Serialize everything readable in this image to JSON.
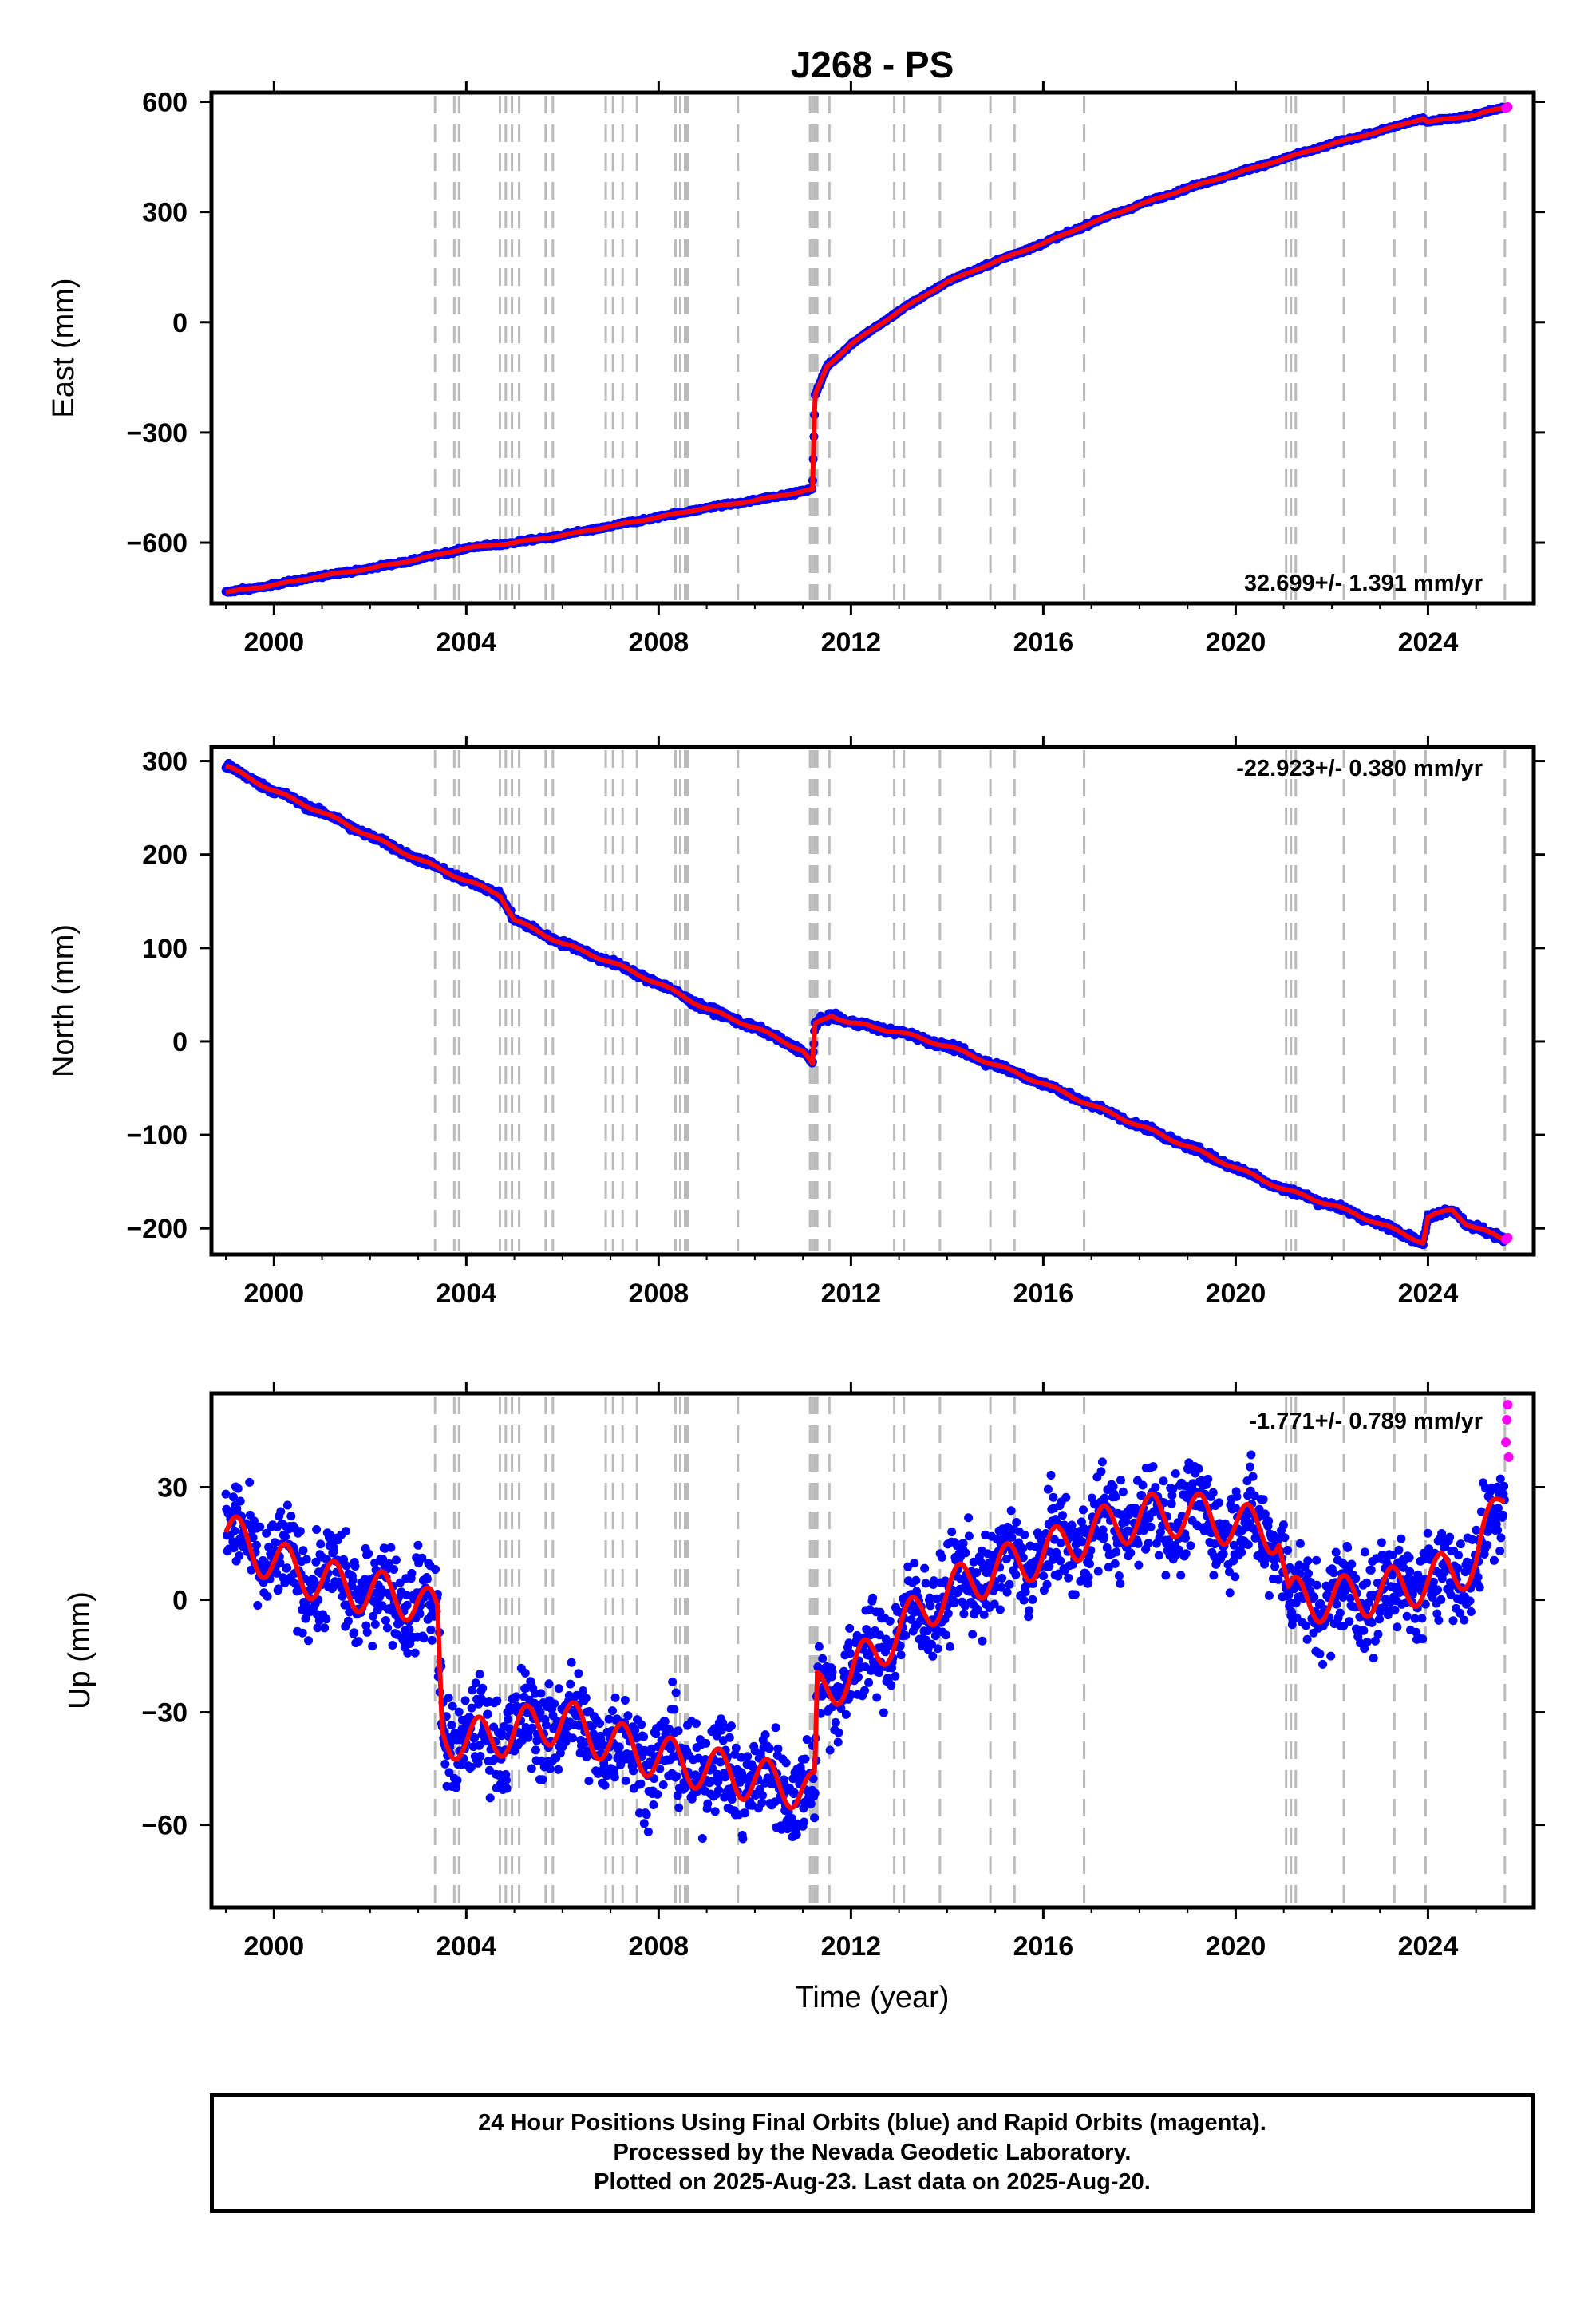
{
  "title": "J268 - PS",
  "xlabel": "Time (year)",
  "footer": {
    "line1": "24 Hour Positions Using Final Orbits (blue) and Rapid Orbits (magenta).",
    "line2": "Processed by the Nevada Geodetic Laboratory.",
    "line3": "Plotted on 2025-Aug-23. Last data on 2025-Aug-20."
  },
  "colors": {
    "final": "#0000ff",
    "rapid": "#ff00ff",
    "model": "#ff0000",
    "event_line": "#bbbbbb"
  },
  "chart_data": [
    {
      "type": "scatter",
      "ylabel": "East (mm)",
      "rate_text": "32.699+/- 1.391 mm/yr",
      "xlim": [
        1998.7,
        2026.2
      ],
      "ylim": [
        -765,
        625
      ],
      "xticks": [
        2000,
        2004,
        2008,
        2012,
        2016,
        2020,
        2024
      ],
      "yticks": [
        600,
        300,
        0,
        -300,
        -600
      ],
      "ytick_labels": [
        "600",
        "300",
        "0",
        "−300",
        "−600"
      ],
      "series": [
        {
          "name": "final",
          "x": [
            1999.0,
            2000.0,
            2001.0,
            2002.0,
            2003.0,
            2004.0,
            2005.0,
            2006.0,
            2007.0,
            2008.0,
            2009.0,
            2010.0,
            2011.0,
            2011.2,
            2011.25,
            2011.5,
            2012.0,
            2013.0,
            2014.0,
            2015.0,
            2016.0,
            2017.0,
            2018.0,
            2019.0,
            2020.0,
            2021.0,
            2022.0,
            2023.0,
            2023.9,
            2024.0,
            2025.0,
            2025.6
          ],
          "y": [
            -735,
            -715,
            -690,
            -670,
            -645,
            -615,
            -600,
            -580,
            -555,
            -530,
            -505,
            -485,
            -460,
            -455,
            -200,
            -120,
            -60,
            30,
            110,
            165,
            215,
            270,
            320,
            365,
            405,
            445,
            485,
            520,
            555,
            545,
            565,
            585
          ]
        },
        {
          "name": "rapid",
          "x": [
            2025.62,
            2025.66
          ],
          "y": [
            583,
            586
          ]
        }
      ]
    },
    {
      "type": "scatter",
      "ylabel": "North (mm)",
      "rate_text": "-22.923+/- 0.380 mm/yr",
      "xlim": [
        1998.7,
        2026.2
      ],
      "ylim": [
        -228,
        315
      ],
      "xticks": [
        2000,
        2004,
        2008,
        2012,
        2016,
        2020,
        2024
      ],
      "yticks": [
        300,
        200,
        100,
        0,
        -100,
        -200
      ],
      "ytick_labels": [
        "300",
        "200",
        "100",
        "0",
        "−100",
        "−200"
      ],
      "series": [
        {
          "name": "final",
          "x": [
            1999.0,
            2000.0,
            2001.0,
            2002.0,
            2003.0,
            2004.0,
            2004.7,
            2005.0,
            2006.0,
            2007.0,
            2008.0,
            2009.0,
            2010.0,
            2011.0,
            2011.2,
            2011.25,
            2011.6,
            2012.0,
            2013.0,
            2014.0,
            2015.0,
            2016.0,
            2017.0,
            2018.0,
            2019.0,
            2020.0,
            2021.0,
            2022.0,
            2023.0,
            2023.9,
            2024.0,
            2024.5,
            2024.8,
            2025.6
          ],
          "y": [
            295,
            268,
            245,
            220,
            195,
            172,
            157,
            130,
            105,
            85,
            62,
            35,
            15,
            -10,
            -25,
            18,
            28,
            20,
            10,
            -5,
            -25,
            -45,
            -68,
            -90,
            -112,
            -135,
            -158,
            -175,
            -195,
            -215,
            -188,
            -180,
            -195,
            -212
          ]
        },
        {
          "name": "rapid",
          "x": [
            2025.62,
            2025.66
          ],
          "y": [
            -212,
            -210
          ]
        }
      ]
    },
    {
      "type": "scatter",
      "ylabel": "Up (mm)",
      "rate_text": "-1.771+/- 0.789 mm/yr",
      "xlim": [
        1998.7,
        2026.2
      ],
      "ylim": [
        -82,
        55
      ],
      "xticks": [
        2000,
        2004,
        2008,
        2012,
        2016,
        2020,
        2024
      ],
      "yticks": [
        30,
        0,
        -30,
        -60
      ],
      "ytick_labels": [
        "30",
        "0",
        "−30",
        "−60"
      ],
      "series": [
        {
          "name": "final",
          "x": [
            1999.0,
            2000.0,
            2001.0,
            2002.0,
            2003.0,
            2003.4,
            2003.5,
            2004.0,
            2005.0,
            2006.0,
            2007.0,
            2008.0,
            2009.0,
            2010.0,
            2011.0,
            2011.25,
            2011.3,
            2012.0,
            2013.0,
            2014.0,
            2015.0,
            2016.0,
            2017.0,
            2018.0,
            2019.0,
            2020.0,
            2020.9,
            2021.1,
            2022.0,
            2023.0,
            2024.0,
            2025.0,
            2025.6
          ],
          "y": [
            18,
            10,
            5,
            2,
            0,
            -5,
            -35,
            -38,
            -35,
            -32,
            -38,
            -42,
            -45,
            -48,
            -50,
            -52,
            -25,
            -20,
            -8,
            2,
            8,
            12,
            18,
            22,
            23,
            20,
            18,
            0,
            0,
            2,
            5,
            10,
            30
          ]
        },
        {
          "name": "rapid",
          "x": [
            2025.62,
            2025.64,
            2025.66,
            2025.68
          ],
          "y": [
            42,
            48,
            52,
            38
          ]
        }
      ]
    }
  ],
  "event_lines": [
    2003.35,
    2003.75,
    2003.85,
    2004.7,
    2004.82,
    2004.95,
    2005.1,
    2005.65,
    2005.8,
    2006.9,
    2007.05,
    2007.25,
    2007.55,
    2008.35,
    2008.45,
    2008.55,
    2008.6,
    2009.65,
    2011.15,
    2011.2,
    2011.25,
    2011.3,
    2011.55,
    2012.9,
    2013.1,
    2013.85,
    2014.9,
    2015.4,
    2016.85,
    2021.05,
    2021.15,
    2021.25,
    2022.25,
    2023.3,
    2023.95,
    2025.6
  ]
}
